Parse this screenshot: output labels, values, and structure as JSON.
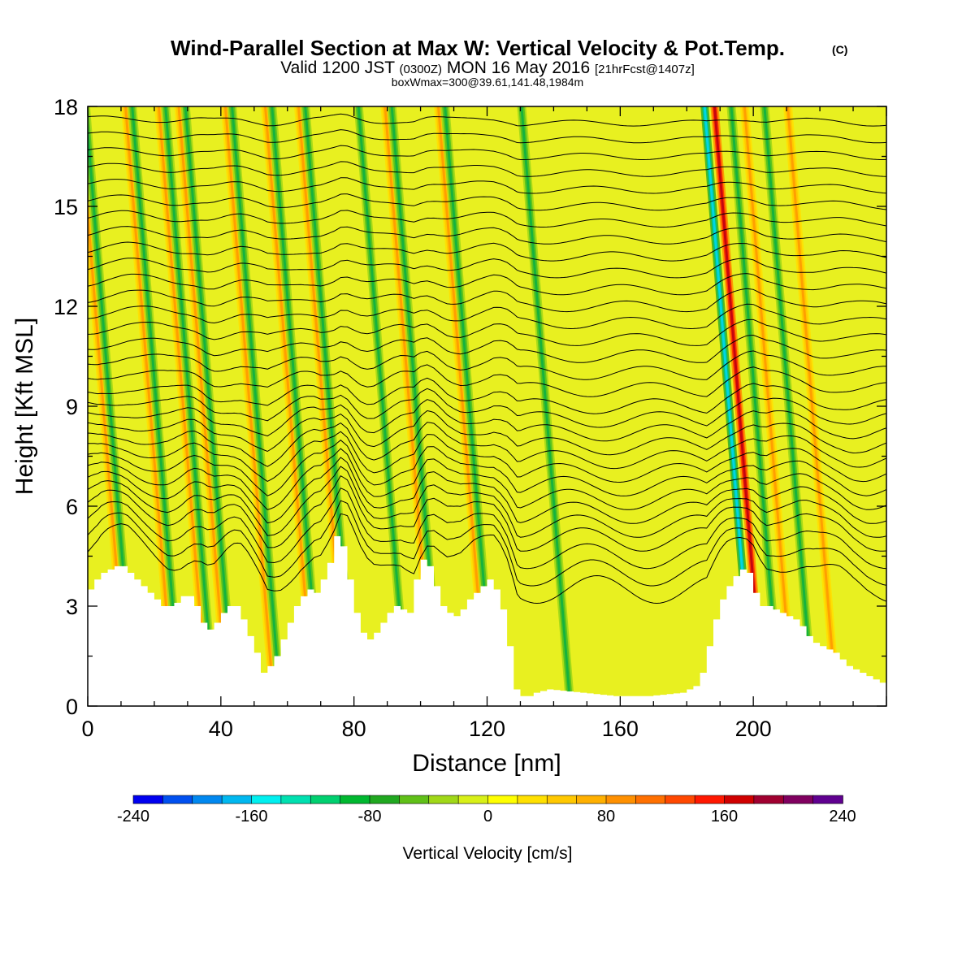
{
  "header": {
    "title_main": "Wind-Parallel Section at Max W: Vertical Velocity & Pot.Temp.",
    "title_mark": "(C)",
    "valid_a": "Valid 1200 JST",
    "valid_b": "(0300Z)",
    "valid_c": "MON 16 May 2016",
    "valid_d": "[21hrFcst@1407z]",
    "box_info": "boxWmax=300@39.61,141.48,1984m"
  },
  "chart_data": {
    "type": "heatmap",
    "xlabel": "Distance [nm]",
    "ylabel": "Height [Kft MSL]",
    "xlim": [
      0,
      240
    ],
    "ylim": [
      0,
      18
    ],
    "x_ticks": [
      "0",
      "40",
      "80",
      "120",
      "160",
      "200"
    ],
    "y_ticks": [
      "0",
      "3",
      "6",
      "9",
      "12",
      "15",
      "18"
    ],
    "x_tick_values": [
      0,
      40,
      80,
      120,
      160,
      200
    ],
    "y_tick_values": [
      0,
      3,
      6,
      9,
      12,
      15,
      18
    ],
    "colorbar": {
      "label": "Vertical Velocity [cm/s]",
      "range": [
        -240,
        240
      ],
      "tick_labels": [
        "-240",
        "-160",
        "-80",
        "0",
        "80",
        "160",
        "240"
      ],
      "tick_values": [
        -240,
        -160,
        -80,
        0,
        80,
        160,
        240
      ],
      "colors": [
        "#0000f0",
        "#0050f0",
        "#0088f0",
        "#00b8f0",
        "#00f0f0",
        "#00e0b0",
        "#00d070",
        "#00b830",
        "#20a820",
        "#60c018",
        "#a0d818",
        "#d8f018",
        "#ffff00",
        "#ffe000",
        "#ffc800",
        "#ffb000",
        "#ff9000",
        "#ff7000",
        "#ff4800",
        "#ff1800",
        "#d00000",
        "#a00030",
        "#800060",
        "#600090"
      ]
    },
    "terrain_kft": {
      "x": [
        0,
        3,
        4,
        6,
        8,
        10,
        12,
        14,
        16,
        18,
        20,
        22,
        24,
        26,
        28,
        30,
        32,
        34,
        36,
        38,
        40,
        42,
        44,
        46,
        48,
        50,
        52,
        54,
        56,
        58,
        60,
        62,
        64,
        66,
        68,
        70,
        72,
        74,
        76,
        78,
        80,
        82,
        84,
        86,
        88,
        90,
        92,
        94,
        96,
        98,
        100,
        102,
        104,
        106,
        108,
        110,
        112,
        114,
        116,
        118,
        120,
        122,
        124,
        126,
        128,
        130,
        132,
        134,
        136,
        140,
        150,
        160,
        170,
        180,
        184,
        186,
        188,
        190,
        192,
        194,
        196,
        198,
        200,
        202,
        204,
        206,
        208,
        210,
        212,
        214,
        216,
        218,
        220,
        222,
        224,
        226,
        228,
        230,
        232,
        234,
        236,
        238,
        240
      ],
      "y": [
        3.3,
        3.6,
        3.8,
        4.0,
        4.1,
        4.2,
        4.2,
        4.0,
        3.8,
        3.6,
        3.4,
        3.2,
        3.0,
        3.0,
        3.1,
        3.3,
        3.3,
        3.0,
        2.5,
        2.3,
        2.5,
        2.8,
        3.0,
        3.0,
        2.6,
        2.1,
        1.6,
        1.0,
        1.2,
        1.5,
        2.0,
        2.5,
        3.0,
        3.3,
        3.5,
        3.4,
        3.8,
        4.3,
        5.1,
        4.8,
        3.8,
        2.8,
        2.2,
        2.0,
        2.2,
        2.5,
        2.8,
        3.0,
        2.9,
        2.8,
        3.8,
        4.4,
        4.2,
        3.6,
        3.0,
        2.8,
        2.7,
        2.9,
        3.2,
        3.4,
        3.6,
        3.8,
        3.5,
        2.9,
        1.8,
        0.5,
        0.3,
        0.3,
        0.4,
        0.5,
        0.4,
        0.3,
        0.3,
        0.4,
        0.6,
        1.0,
        1.8,
        2.6,
        3.2,
        3.6,
        3.9,
        4.1,
        4.0,
        3.4,
        3.0,
        3.0,
        2.9,
        2.8,
        2.7,
        2.6,
        2.4,
        2.1,
        1.9,
        1.8,
        1.7,
        1.6,
        1.4,
        1.2,
        1.1,
        1.0,
        0.9,
        0.8,
        0.7
      ]
    },
    "bands": [
      {
        "x": 12,
        "kind": "up"
      },
      {
        "x": 14,
        "kind": "down"
      },
      {
        "x": 26,
        "kind": "up"
      },
      {
        "x": 28,
        "kind": "down"
      },
      {
        "x": 36,
        "kind": "up"
      },
      {
        "x": 38,
        "kind": "down"
      },
      {
        "x": 42,
        "kind": "up"
      },
      {
        "x": 44,
        "kind": "down"
      },
      {
        "x": 56,
        "kind": "up"
      },
      {
        "x": 58,
        "kind": "down"
      },
      {
        "x": 68,
        "kind": "up"
      },
      {
        "x": 70,
        "kind": "down"
      },
      {
        "x": 78,
        "kind": "up"
      },
      {
        "x": 80,
        "kind": "down"
      },
      {
        "x": 96,
        "kind": "down"
      },
      {
        "x": 104,
        "kind": "up"
      },
      {
        "x": 106,
        "kind": "down"
      },
      {
        "x": 120,
        "kind": "up"
      },
      {
        "x": 122,
        "kind": "down"
      },
      {
        "x": 145,
        "kind": "down"
      },
      {
        "x": 200,
        "kind": "strong-down"
      },
      {
        "x": 203,
        "kind": "strong-up"
      },
      {
        "x": 208,
        "kind": "down"
      },
      {
        "x": 212,
        "kind": "up"
      },
      {
        "x": 218,
        "kind": "down"
      },
      {
        "x": 225,
        "kind": "up"
      }
    ],
    "isentropes_kft": [
      3.5,
      4.0,
      4.5,
      5.0,
      5.4,
      5.8,
      6.2,
      6.6,
      7.0,
      7.4,
      7.8,
      8.2,
      8.6,
      9.0,
      9.5,
      10.0,
      10.5,
      11.0,
      11.5,
      12.0,
      12.5,
      13.0,
      13.5,
      14.0,
      14.5,
      15.0,
      15.5,
      16.0,
      16.5,
      17.0,
      17.5
    ]
  }
}
